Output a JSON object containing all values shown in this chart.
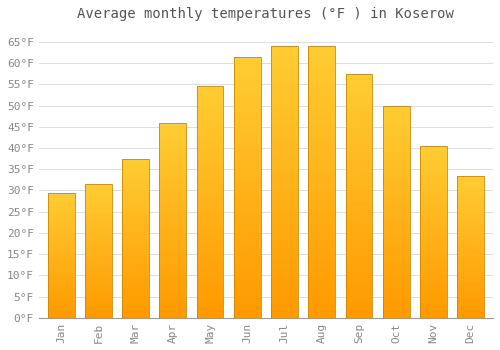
{
  "title": "Average monthly temperatures (°F ) in Koserow",
  "months": [
    "Jan",
    "Feb",
    "Mar",
    "Apr",
    "May",
    "Jun",
    "Jul",
    "Aug",
    "Sep",
    "Oct",
    "Nov",
    "Dec"
  ],
  "values": [
    29.5,
    31.5,
    37.5,
    46.0,
    54.5,
    61.5,
    64.0,
    64.0,
    57.5,
    50.0,
    40.5,
    33.5
  ],
  "bar_color_top": "#FFCC33",
  "bar_color_bottom": "#FF9900",
  "bar_edge_color": "#CC8800",
  "background_color": "#FFFFFF",
  "grid_color": "#DDDDDD",
  "tick_label_color": "#888888",
  "title_color": "#555555",
  "ylim": [
    0,
    68
  ],
  "yticks": [
    0,
    5,
    10,
    15,
    20,
    25,
    30,
    35,
    40,
    45,
    50,
    55,
    60,
    65
  ],
  "title_fontsize": 10,
  "tick_fontsize": 8
}
